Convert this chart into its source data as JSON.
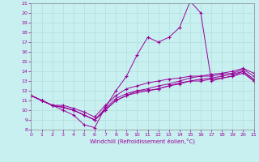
{
  "xlabel": "Windchill (Refroidissement éolien,°C)",
  "bg_color": "#c8f0f0",
  "grid_color": "#b0dede",
  "line_color": "#990099",
  "xlim": [
    0,
    21
  ],
  "ylim": [
    8,
    21
  ],
  "xticks": [
    0,
    1,
    2,
    3,
    4,
    5,
    6,
    7,
    8,
    9,
    10,
    11,
    12,
    13,
    14,
    15,
    16,
    17,
    18,
    19,
    20,
    21
  ],
  "yticks": [
    8,
    9,
    10,
    11,
    12,
    13,
    14,
    15,
    16,
    17,
    18,
    19,
    20,
    21
  ],
  "line1_x": [
    0,
    1,
    2,
    3,
    4,
    5,
    6,
    7,
    8,
    9,
    10,
    11,
    12,
    13,
    14,
    15,
    16,
    17,
    18,
    19,
    20,
    21
  ],
  "line1_y": [
    11.5,
    11.0,
    10.5,
    10.0,
    9.5,
    8.5,
    8.2,
    10.3,
    12.0,
    13.5,
    15.7,
    17.5,
    17.0,
    17.5,
    18.5,
    21.2,
    20.0,
    13.0,
    13.3,
    13.5,
    14.0,
    13.0
  ],
  "line2_x": [
    0,
    1,
    2,
    3,
    4,
    5,
    6,
    7,
    8,
    9,
    10,
    11,
    12,
    13,
    14,
    15,
    16,
    17,
    18,
    19,
    20,
    21
  ],
  "line2_y": [
    11.5,
    11.0,
    10.5,
    10.3,
    10.0,
    9.5,
    9.0,
    10.0,
    11.0,
    11.5,
    12.0,
    12.0,
    12.2,
    12.5,
    12.8,
    13.0,
    13.2,
    13.3,
    13.5,
    13.7,
    14.0,
    13.2
  ],
  "line3_x": [
    0,
    1,
    2,
    3,
    4,
    5,
    6,
    7,
    8,
    9,
    10,
    11,
    12,
    13,
    14,
    15,
    16,
    17,
    18,
    19,
    20,
    21
  ],
  "line3_y": [
    11.5,
    11.0,
    10.5,
    10.3,
    10.0,
    9.5,
    9.0,
    10.2,
    11.2,
    11.7,
    12.0,
    12.2,
    12.5,
    12.7,
    13.0,
    13.3,
    13.5,
    13.5,
    13.7,
    13.8,
    14.2,
    13.5
  ],
  "line4_x": [
    0,
    1,
    2,
    3,
    4,
    5,
    6,
    7,
    8,
    9,
    10,
    11,
    12,
    13,
    14,
    15,
    16,
    17,
    18,
    19,
    20,
    21
  ],
  "line4_y": [
    11.5,
    11.0,
    10.5,
    10.5,
    10.2,
    9.8,
    9.3,
    10.5,
    11.5,
    12.2,
    12.5,
    12.8,
    13.0,
    13.2,
    13.3,
    13.5,
    13.5,
    13.7,
    13.8,
    14.0,
    14.3,
    13.8
  ],
  "line5_x": [
    0,
    1,
    2,
    3,
    4,
    5,
    6,
    7,
    8,
    9,
    10,
    11,
    12,
    13,
    14,
    15,
    16,
    17,
    18,
    19,
    20,
    21
  ],
  "line5_y": [
    11.5,
    11.0,
    10.5,
    10.3,
    10.0,
    9.5,
    9.0,
    10.0,
    11.0,
    11.5,
    11.8,
    12.0,
    12.2,
    12.5,
    12.7,
    13.0,
    13.0,
    13.2,
    13.3,
    13.5,
    13.8,
    13.0
  ]
}
